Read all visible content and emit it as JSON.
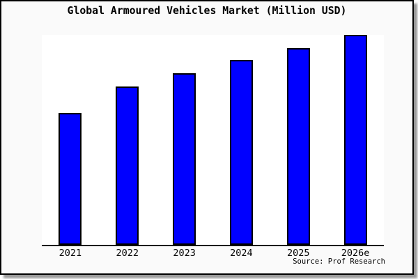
{
  "title": "Global Armoured Vehicles Market (Million USD)",
  "source": "Source: Prof Research",
  "colors": {
    "bar_fill": "#0000ff",
    "bar_border": "#000000",
    "figure_background": "#fafafa",
    "plot_background": "#ffffff",
    "frame_border": "#000000",
    "text": "#000000"
  },
  "chart_data": {
    "type": "bar",
    "title": "Global Armoured Vehicles Market (Million USD)",
    "categories": [
      "2021",
      "2022",
      "2023",
      "2024",
      "2025",
      "2026e"
    ],
    "values": [
      62.7,
      75.3,
      81.7,
      87.9,
      93.6,
      100
    ],
    "values_note": "y-axis has no tick labels; values are relative bar heights indexed to 2026e = 100",
    "xlabel": "",
    "ylabel": "",
    "ylim": [
      0,
      100
    ],
    "grid": false,
    "legend": false,
    "annotation": "Source: Prof Research"
  }
}
